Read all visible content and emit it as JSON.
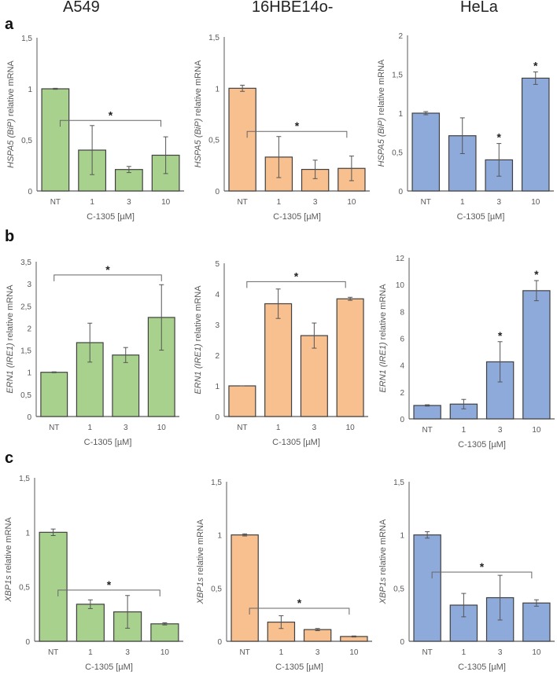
{
  "column_titles": [
    "A549",
    "16HBE14o-",
    "HeLa"
  ],
  "row_letters": [
    "a",
    "b",
    "c"
  ],
  "colors": {
    "A549": "#a9d18e",
    "16HBE14o-": "#f8bf8f",
    "HeLa": "#8eaadb",
    "axis": "#595959",
    "text": "#595959"
  },
  "chart_data": [
    {
      "type": "bar",
      "row": "a",
      "cell": "A549",
      "categories": [
        "NT",
        "1",
        "3",
        "10"
      ],
      "values": [
        1,
        0.4,
        0.21,
        0.35
      ],
      "errors": [
        0.005,
        0.24,
        0.03,
        0.18
      ],
      "ylim": [
        0,
        1.5
      ],
      "yticks": [
        0,
        0.5,
        1,
        1.5
      ],
      "ytick_labels": [
        "0",
        "0,5",
        "1",
        "1,5"
      ],
      "ylabel_gene": "HSPA5 (BiP)",
      "ylabel_rest": " relative mRNA",
      "xlabel": "C-1305 [µM]",
      "bracket": {
        "from": 0.5,
        "to": 3.5,
        "y": 0.69,
        "label": "*"
      },
      "stars": []
    },
    {
      "type": "bar",
      "row": "a",
      "cell": "16HBE14o-",
      "categories": [
        "NT",
        "1",
        "3",
        "10"
      ],
      "values": [
        1,
        0.33,
        0.21,
        0.22
      ],
      "errors": [
        0.03,
        0.2,
        0.09,
        0.12
      ],
      "ylim": [
        0,
        1.5
      ],
      "yticks": [
        0,
        0.5,
        1,
        1.5
      ],
      "ytick_labels": [
        "0",
        "0,5",
        "1",
        "1,5"
      ],
      "ylabel_gene": "HSPA5 (BiP)",
      "ylabel_rest": " relative mRNA",
      "xlabel": "C-1305 [µM]",
      "bracket": {
        "from": 0.5,
        "to": 3.5,
        "y": 0.58,
        "label": "*"
      },
      "stars": []
    },
    {
      "type": "bar",
      "row": "a",
      "cell": "HeLa",
      "categories": [
        "NT",
        "1",
        "3",
        "10"
      ],
      "values": [
        1,
        0.71,
        0.4,
        1.45
      ],
      "errors": [
        0.02,
        0.23,
        0.21,
        0.08
      ],
      "ylim": [
        0,
        2
      ],
      "yticks": [
        0,
        0.5,
        1,
        1.5,
        2
      ],
      "ytick_labels": [
        "0",
        "0,5",
        "1",
        "1,5",
        "2"
      ],
      "ylabel_gene": "HSPA5 (BiP)",
      "ylabel_rest": " relative mRNA",
      "xlabel": "C-1305 [µM]",
      "bracket": null,
      "stars": [
        {
          "index": 2,
          "label": "*"
        },
        {
          "index": 3,
          "label": "*"
        }
      ]
    },
    {
      "type": "bar",
      "row": "b",
      "cell": "A549",
      "categories": [
        "NT",
        "1",
        "3",
        "10"
      ],
      "values": [
        1,
        1.67,
        1.39,
        2.24
      ],
      "errors": [
        0.01,
        0.44,
        0.17,
        0.74
      ],
      "ylim": [
        0,
        3.5
      ],
      "yticks": [
        0,
        0.5,
        1,
        1.5,
        2,
        2.5,
        3,
        3.5
      ],
      "ytick_labels": [
        "0",
        "0,5",
        "1",
        "1,5",
        "2",
        "2,5",
        "3",
        "3,5"
      ],
      "ylabel_gene": "ERN1 (IRE1)",
      "ylabel_rest": " relative mRNA",
      "xlabel": "C-1305 [µM]",
      "bracket": {
        "from": 0,
        "to": 3,
        "y": 3.2,
        "label": "*"
      },
      "stars": []
    },
    {
      "type": "bar",
      "row": "b",
      "cell": "16HBE14o-",
      "categories": [
        "NT",
        "1",
        "3",
        "10"
      ],
      "values": [
        1,
        3.68,
        2.64,
        3.84
      ],
      "errors": [
        0,
        0.48,
        0.41,
        0.05
      ],
      "ylim": [
        0,
        5
      ],
      "yticks": [
        0,
        1,
        2,
        3,
        4,
        5
      ],
      "ytick_labels": [
        "0",
        "1",
        "2",
        "3",
        "4",
        "5"
      ],
      "ylabel_gene": "ERN1 (IRE1)",
      "ylabel_rest": " relative mRNA",
      "xlabel": "C-1305 [µM]",
      "bracket": {
        "from": 0.5,
        "to": 3.5,
        "y": 4.4,
        "label": "*"
      },
      "stars": []
    },
    {
      "type": "bar",
      "row": "b",
      "cell": "HeLa",
      "categories": [
        "NT",
        "1",
        "3",
        "10"
      ],
      "values": [
        1,
        1.1,
        4.25,
        9.55
      ],
      "errors": [
        0.05,
        0.35,
        1.5,
        0.75
      ],
      "ylim": [
        0,
        12
      ],
      "yticks": [
        0,
        2,
        4,
        6,
        8,
        10,
        12
      ],
      "ytick_labels": [
        "0",
        "2",
        "4",
        "6",
        "8",
        "10",
        "12"
      ],
      "ylabel_gene": "ERN1 (IRE1)",
      "ylabel_rest": " relative mRNA",
      "xlabel": "C-1305 [µM]",
      "bracket": null,
      "stars": [
        {
          "index": 2,
          "label": "*"
        },
        {
          "index": 3,
          "label": "*"
        }
      ]
    },
    {
      "type": "bar",
      "row": "c",
      "cell": "A549",
      "categories": [
        "NT",
        "1",
        "3",
        "10"
      ],
      "values": [
        1,
        0.34,
        0.27,
        0.16
      ],
      "errors": [
        0.03,
        0.04,
        0.15,
        0.01
      ],
      "ylim": [
        0,
        1.5
      ],
      "yticks": [
        0,
        0.5,
        1,
        1.5
      ],
      "ytick_labels": [
        "0",
        "0,5",
        "1",
        "1,5"
      ],
      "ylabel_gene": "XBP1s",
      "ylabel_rest": " relative mRNA",
      "xlabel": "C-1305 [µM]",
      "bracket": {
        "from": 0.5,
        "to": 3.5,
        "y": 0.47,
        "label": "*"
      },
      "stars": []
    },
    {
      "type": "bar",
      "row": "c",
      "cell": "16HBE14o-",
      "categories": [
        "NT",
        "1",
        "3",
        "10"
      ],
      "values": [
        1,
        0.18,
        0.11,
        0.045
      ],
      "errors": [
        0.01,
        0.06,
        0.01,
        0.005
      ],
      "ylim": [
        0,
        1.5
      ],
      "yticks": [
        0,
        0.5,
        1,
        1.5
      ],
      "ytick_labels": [
        "0",
        "0,5",
        "1",
        "1,5"
      ],
      "ylabel_gene": "XBP1s",
      "ylabel_rest": " relative mRNA",
      "xlabel": "C-1305 [µM]",
      "bracket": {
        "from": 0.5,
        "to": 3.5,
        "y": 0.31,
        "label": "*"
      },
      "stars": []
    },
    {
      "type": "bar",
      "row": "c",
      "cell": "HeLa",
      "categories": [
        "NT",
        "1",
        "3",
        "10"
      ],
      "values": [
        1,
        0.34,
        0.41,
        0.36
      ],
      "errors": [
        0.03,
        0.11,
        0.21,
        0.03
      ],
      "ylim": [
        0,
        1.5
      ],
      "yticks": [
        0,
        0.5,
        1,
        1.5
      ],
      "ytick_labels": [
        "0",
        "0,5",
        "1",
        "1,5"
      ],
      "ylabel_gene": "XBP1s",
      "ylabel_rest": " relative mRNA",
      "xlabel": "C-1305 [µM]",
      "bracket": {
        "from": 0.5,
        "to": 3.5,
        "y": 0.65,
        "label": "*"
      },
      "stars": []
    }
  ]
}
